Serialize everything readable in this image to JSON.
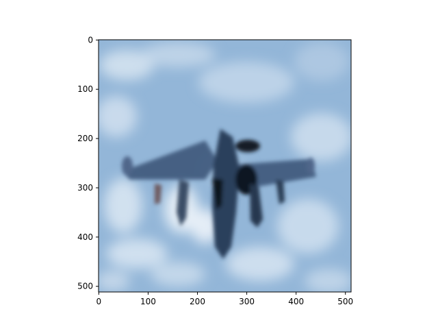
{
  "figure": {
    "background": "#ffffff"
  },
  "chart_data": {
    "type": "image",
    "title": "",
    "xlabel": "",
    "ylabel": "",
    "x_ticks": [
      0,
      100,
      200,
      300,
      400,
      500
    ],
    "y_ticks": [
      0,
      100,
      200,
      300,
      400,
      500
    ],
    "x_tick_labels": [
      "0",
      "100",
      "200",
      "300",
      "400",
      "500"
    ],
    "y_tick_labels": [
      "0",
      "100",
      "200",
      "300",
      "400",
      "500"
    ],
    "xlim": [
      -0.5,
      511.5
    ],
    "ylim": [
      511.5,
      -0.5
    ],
    "y_axis_inverted": true,
    "grid": false,
    "image_content": {
      "depicts": "blurred photo of a jet fighter aircraft flying over clouds",
      "sky_color": "#93b6d8",
      "cloud_color": "#dce8f3",
      "aircraft_color": "#2a3f5c",
      "aircraft_dark_color": "#101820"
    }
  }
}
